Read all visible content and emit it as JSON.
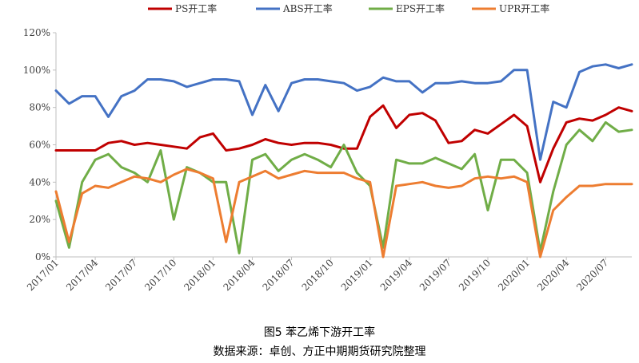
{
  "caption": {
    "title": "图5 苯乙烯下游开工率",
    "source": "数据来源：卓创、方正中期期货研究院整理"
  },
  "chart_data": {
    "type": "line",
    "ylim": [
      0,
      120
    ],
    "yticks": [
      "0%",
      "20%",
      "40%",
      "60%",
      "80%",
      "100%",
      "120%"
    ],
    "x": [
      "2017/01",
      "2017/04",
      "2017/07",
      "2017/10",
      "2018/01",
      "2018/04",
      "2018/07",
      "2018/10",
      "2019/01",
      "2019/04",
      "2019/07",
      "2019/10",
      "2020/01",
      "2020/04",
      "2020/07"
    ],
    "legend_position": "top",
    "grid": {
      "horizontal": false,
      "vertical": false
    },
    "series": [
      {
        "name": "PS开工率",
        "color": "#C00000",
        "points": [
          [
            "2017/01",
            57
          ],
          [
            "2017/04",
            57
          ],
          [
            "2017/05",
            61
          ],
          [
            "2017/06",
            62
          ],
          [
            "2017/07",
            60
          ],
          [
            "2017/08",
            61
          ],
          [
            "2017/09",
            60
          ],
          [
            "2017/10",
            59
          ],
          [
            "2017/11",
            58
          ],
          [
            "2017/12",
            64
          ],
          [
            "2018/01",
            66
          ],
          [
            "2018/02",
            57
          ],
          [
            "2018/03",
            58
          ],
          [
            "2018/04",
            60
          ],
          [
            "2018/05",
            63
          ],
          [
            "2018/06",
            61
          ],
          [
            "2018/07",
            60
          ],
          [
            "2018/08",
            61
          ],
          [
            "2018/09",
            61
          ],
          [
            "2018/10",
            60
          ],
          [
            "2018/11",
            58
          ],
          [
            "2018/12",
            58
          ],
          [
            "2019/01",
            75
          ],
          [
            "2019/02",
            81
          ],
          [
            "2019/03",
            69
          ],
          [
            "2019/04",
            76
          ],
          [
            "2019/05",
            77
          ],
          [
            "2019/06",
            73
          ],
          [
            "2019/07",
            61
          ],
          [
            "2019/08",
            62
          ],
          [
            "2019/09",
            68
          ],
          [
            "2019/10",
            66
          ],
          [
            "2019/11",
            71
          ],
          [
            "2019/12",
            76
          ],
          [
            "2020/01",
            70
          ],
          [
            "2020/02",
            40
          ],
          [
            "2020/03",
            58
          ],
          [
            "2020/04",
            72
          ],
          [
            "2020/05",
            74
          ],
          [
            "2020/06",
            73
          ],
          [
            "2020/07",
            76
          ],
          [
            "2020/08",
            80
          ],
          [
            "2020/09",
            78
          ]
        ]
      },
      {
        "name": "ABS开工率",
        "color": "#4472C4",
        "points": [
          [
            "2017/01",
            89
          ],
          [
            "2017/02",
            82
          ],
          [
            "2017/03",
            86
          ],
          [
            "2017/04",
            86
          ],
          [
            "2017/05",
            75
          ],
          [
            "2017/06",
            86
          ],
          [
            "2017/07",
            89
          ],
          [
            "2017/08",
            95
          ],
          [
            "2017/09",
            95
          ],
          [
            "2017/10",
            94
          ],
          [
            "2017/11",
            91
          ],
          [
            "2017/12",
            93
          ],
          [
            "2018/01",
            95
          ],
          [
            "2018/02",
            95
          ],
          [
            "2018/03",
            94
          ],
          [
            "2018/04",
            76
          ],
          [
            "2018/05",
            92
          ],
          [
            "2018/06",
            78
          ],
          [
            "2018/07",
            93
          ],
          [
            "2018/08",
            95
          ],
          [
            "2018/09",
            95
          ],
          [
            "2018/10",
            94
          ],
          [
            "2018/11",
            93
          ],
          [
            "2018/12",
            89
          ],
          [
            "2019/01",
            91
          ],
          [
            "2019/02",
            96
          ],
          [
            "2019/03",
            94
          ],
          [
            "2019/04",
            94
          ],
          [
            "2019/05",
            88
          ],
          [
            "2019/06",
            93
          ],
          [
            "2019/07",
            93
          ],
          [
            "2019/08",
            94
          ],
          [
            "2019/09",
            93
          ],
          [
            "2019/10",
            93
          ],
          [
            "2019/11",
            94
          ],
          [
            "2019/12",
            100
          ],
          [
            "2020/01",
            100
          ],
          [
            "2020/02",
            52
          ],
          [
            "2020/03",
            83
          ],
          [
            "2020/04",
            80
          ],
          [
            "2020/05",
            99
          ],
          [
            "2020/06",
            102
          ],
          [
            "2020/07",
            103
          ],
          [
            "2020/08",
            101
          ],
          [
            "2020/09",
            103
          ]
        ]
      },
      {
        "name": "EPS开工率",
        "color": "#70AD47",
        "points": [
          [
            "2017/01",
            30
          ],
          [
            "2017/02",
            5
          ],
          [
            "2017/03",
            40
          ],
          [
            "2017/04",
            52
          ],
          [
            "2017/05",
            55
          ],
          [
            "2017/06",
            48
          ],
          [
            "2017/07",
            45
          ],
          [
            "2017/08",
            40
          ],
          [
            "2017/09",
            57
          ],
          [
            "2017/10",
            20
          ],
          [
            "2017/11",
            48
          ],
          [
            "2017/12",
            45
          ],
          [
            "2018/01",
            40
          ],
          [
            "2018/02",
            40
          ],
          [
            "2018/03",
            2
          ],
          [
            "2018/04",
            52
          ],
          [
            "2018/05",
            55
          ],
          [
            "2018/06",
            46
          ],
          [
            "2018/07",
            52
          ],
          [
            "2018/08",
            55
          ],
          [
            "2018/09",
            52
          ],
          [
            "2018/10",
            48
          ],
          [
            "2018/11",
            60
          ],
          [
            "2018/12",
            45
          ],
          [
            "2019/01",
            38
          ],
          [
            "2019/02",
            5
          ],
          [
            "2019/03",
            52
          ],
          [
            "2019/04",
            50
          ],
          [
            "2019/05",
            50
          ],
          [
            "2019/06",
            53
          ],
          [
            "2019/07",
            50
          ],
          [
            "2019/08",
            47
          ],
          [
            "2019/09",
            55
          ],
          [
            "2019/10",
            25
          ],
          [
            "2019/11",
            52
          ],
          [
            "2019/12",
            52
          ],
          [
            "2020/01",
            45
          ],
          [
            "2020/02",
            3
          ],
          [
            "2020/03",
            35
          ],
          [
            "2020/04",
            60
          ],
          [
            "2020/05",
            68
          ],
          [
            "2020/06",
            62
          ],
          [
            "2020/07",
            72
          ],
          [
            "2020/08",
            67
          ],
          [
            "2020/09",
            68
          ]
        ]
      },
      {
        "name": "UPR开工率",
        "color": "#ED7D31",
        "points": [
          [
            "2017/01",
            35
          ],
          [
            "2017/02",
            8
          ],
          [
            "2017/03",
            34
          ],
          [
            "2017/04",
            38
          ],
          [
            "2017/05",
            37
          ],
          [
            "2017/06",
            40
          ],
          [
            "2017/07",
            43
          ],
          [
            "2017/08",
            42
          ],
          [
            "2017/09",
            40
          ],
          [
            "2017/10",
            44
          ],
          [
            "2017/11",
            47
          ],
          [
            "2017/12",
            45
          ],
          [
            "2018/01",
            42
          ],
          [
            "2018/02",
            8
          ],
          [
            "2018/03",
            40
          ],
          [
            "2018/04",
            43
          ],
          [
            "2018/05",
            46
          ],
          [
            "2018/06",
            42
          ],
          [
            "2018/07",
            44
          ],
          [
            "2018/08",
            46
          ],
          [
            "2018/09",
            45
          ],
          [
            "2018/10",
            45
          ],
          [
            "2018/11",
            45
          ],
          [
            "2018/12",
            42
          ],
          [
            "2019/01",
            40
          ],
          [
            "2019/02",
            0
          ],
          [
            "2019/03",
            38
          ],
          [
            "2019/04",
            39
          ],
          [
            "2019/05",
            40
          ],
          [
            "2019/06",
            38
          ],
          [
            "2019/07",
            37
          ],
          [
            "2019/08",
            38
          ],
          [
            "2019/09",
            42
          ],
          [
            "2019/10",
            43
          ],
          [
            "2019/11",
            42
          ],
          [
            "2019/12",
            43
          ],
          [
            "2020/01",
            40
          ],
          [
            "2020/02",
            0
          ],
          [
            "2020/03",
            25
          ],
          [
            "2020/04",
            32
          ],
          [
            "2020/05",
            38
          ],
          [
            "2020/06",
            38
          ],
          [
            "2020/07",
            39
          ],
          [
            "2020/08",
            39
          ],
          [
            "2020/09",
            39
          ]
        ]
      }
    ]
  }
}
